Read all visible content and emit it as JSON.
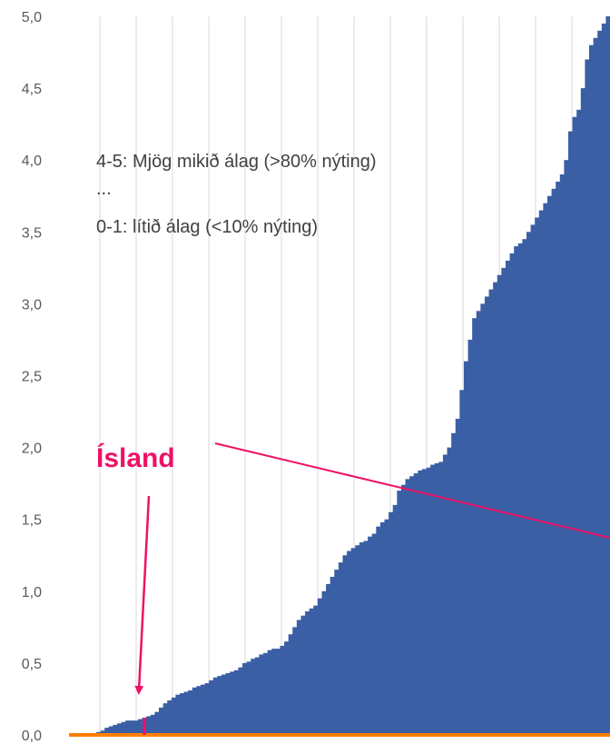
{
  "chart_data": {
    "type": "bar",
    "ylim": [
      0,
      5
    ],
    "yticks": [
      "0,0",
      "0,5",
      "1,0",
      "1,5",
      "2,0",
      "2,5",
      "3,0",
      "3,5",
      "4,0",
      "4,5",
      "5,0"
    ],
    "grid": "vertical",
    "colors": {
      "bars": "#3a5fa5",
      "baseline": "#ff7f00",
      "highlight": "#ee1166",
      "grid": "#d9d9d9"
    },
    "series": [
      {
        "values": [
          0.02,
          0.03,
          0.05,
          0.06,
          0.07,
          0.08,
          0.09,
          0.1,
          0.1,
          0.1,
          0.11,
          0.12,
          0.13,
          0.14,
          0.16,
          0.19,
          0.22,
          0.24,
          0.26,
          0.28,
          0.29,
          0.3,
          0.31,
          0.33,
          0.34,
          0.35,
          0.36,
          0.38,
          0.4,
          0.41,
          0.42,
          0.43,
          0.44,
          0.45,
          0.47,
          0.5,
          0.51,
          0.53,
          0.54,
          0.56,
          0.57,
          0.59,
          0.6,
          0.6,
          0.62,
          0.65,
          0.7,
          0.75,
          0.8,
          0.83,
          0.86,
          0.88,
          0.9,
          0.95,
          1.0,
          1.05,
          1.1,
          1.15,
          1.2,
          1.25,
          1.28,
          1.3,
          1.32,
          1.34,
          1.35,
          1.38,
          1.4,
          1.45,
          1.48,
          1.5,
          1.55,
          1.6,
          1.7,
          1.74,
          1.78,
          1.8,
          1.82,
          1.84,
          1.85,
          1.86,
          1.88,
          1.89,
          1.9,
          1.95,
          2.0,
          2.1,
          2.2,
          2.4,
          2.6,
          2.75,
          2.9,
          2.95,
          3.0,
          3.05,
          3.1,
          3.15,
          3.2,
          3.25,
          3.3,
          3.35,
          3.4,
          3.42,
          3.45,
          3.5,
          3.55,
          3.6,
          3.65,
          3.7,
          3.75,
          3.8,
          3.85,
          3.9,
          4.0,
          4.2,
          4.3,
          4.35,
          4.5,
          4.7,
          4.8,
          4.85,
          4.9,
          4.95,
          5.0
        ]
      }
    ],
    "annotations": [
      {
        "text": "4-5: Mjög mikið álag (>80% nýting)"
      },
      {
        "text": "..."
      },
      {
        "text": "0-1: lítið álag (<10% nýting)"
      }
    ],
    "highlight_label": "Ísland",
    "highlight_index": 11
  }
}
